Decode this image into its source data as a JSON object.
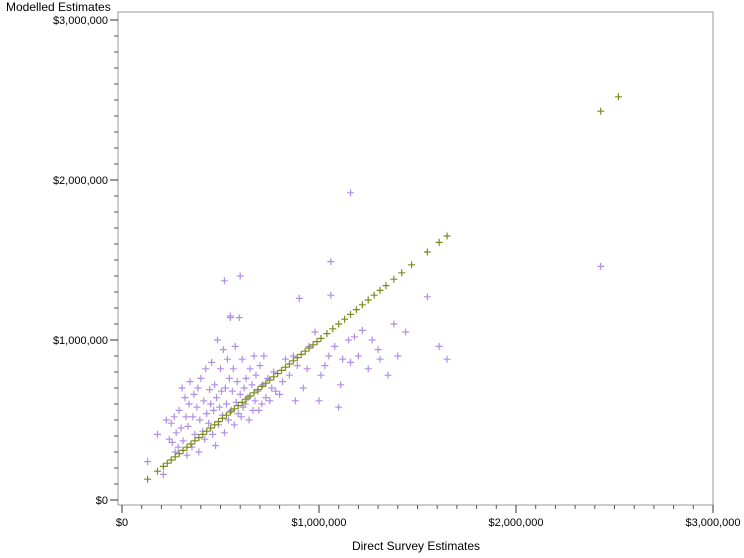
{
  "chart_data": {
    "type": "scatter",
    "ylabel": "Modelled Estimates",
    "xlabel": "Direct Survey Estimates",
    "xlim": [
      0,
      3000000
    ],
    "ylim": [
      0,
      3000000
    ],
    "x_ticks": [
      0,
      1000000,
      2000000,
      3000000
    ],
    "x_tick_labels": [
      "$0",
      "$1,000,000",
      "$2,000,000",
      "$3,000,000"
    ],
    "y_ticks": [
      0,
      1000000,
      2000000,
      3000000
    ],
    "y_tick_labels": [
      "$0",
      "$1,000,000",
      "$2,000,000",
      "$3,000,000"
    ],
    "grid": false,
    "legend": "none",
    "marker": "plus",
    "series": [
      {
        "color": "#b28fe6",
        "x": [
          130000,
          180000,
          210000,
          225000,
          240000,
          250000,
          255000,
          265000,
          270000,
          275000,
          285000,
          290000,
          300000,
          305000,
          310000,
          320000,
          325000,
          330000,
          335000,
          340000,
          345000,
          355000,
          360000,
          365000,
          370000,
          380000,
          385000,
          390000,
          395000,
          400000,
          410000,
          415000,
          420000,
          425000,
          430000,
          440000,
          445000,
          450000,
          455000,
          460000,
          465000,
          470000,
          475000,
          480000,
          485000,
          490000,
          495000,
          500000,
          505000,
          510000,
          515000,
          520000,
          525000,
          530000,
          535000,
          540000,
          545000,
          550000,
          555000,
          560000,
          565000,
          570000,
          575000,
          580000,
          585000,
          590000,
          595000,
          600000,
          605000,
          610000,
          615000,
          620000,
          625000,
          630000,
          640000,
          645000,
          650000,
          660000,
          665000,
          670000,
          675000,
          680000,
          690000,
          695000,
          700000,
          710000,
          715000,
          720000,
          730000,
          740000,
          750000,
          760000,
          770000,
          780000,
          800000,
          815000,
          830000,
          850000,
          870000,
          880000,
          890000,
          900000,
          920000,
          940000,
          950000,
          980000,
          1000000,
          1010000,
          1030000,
          1050000,
          1060000,
          1080000,
          1100000,
          1110000,
          1120000,
          1150000,
          1160000,
          1180000,
          1200000,
          1220000,
          1250000,
          1270000,
          1300000,
          1310000,
          1350000,
          1380000,
          1400000,
          1440000,
          1550000,
          1610000,
          1650000,
          2430000,
          1160000,
          1060000,
          520000,
          550000,
          600000
        ],
        "y": [
          240000,
          410000,
          160000,
          500000,
          380000,
          480000,
          360000,
          520000,
          300000,
          420000,
          330000,
          560000,
          450000,
          700000,
          370000,
          640000,
          520000,
          280000,
          460000,
          600000,
          740000,
          330000,
          520000,
          660000,
          410000,
          580000,
          700000,
          300000,
          500000,
          760000,
          430000,
          620000,
          380000,
          820000,
          540000,
          480000,
          690000,
          600000,
          860000,
          410000,
          560000,
          720000,
          340000,
          640000,
          1000000,
          470000,
          580000,
          820000,
          680000,
          530000,
          940000,
          420000,
          700000,
          600000,
          880000,
          500000,
          760000,
          1150000,
          560000,
          680000,
          820000,
          470000,
          960000,
          610000,
          740000,
          540000,
          1140000,
          660000,
          520000,
          880000,
          580000,
          700000,
          600000,
          760000,
          640000,
          500000,
          820000,
          720000,
          560000,
          900000,
          620000,
          780000,
          680000,
          560000,
          840000,
          600000,
          720000,
          900000,
          640000,
          760000,
          620000,
          700000,
          800000,
          680000,
          660000,
          740000,
          880000,
          780000,
          900000,
          620000,
          840000,
          1260000,
          700000,
          820000,
          960000,
          1050000,
          620000,
          780000,
          840000,
          900000,
          1490000,
          960000,
          580000,
          720000,
          880000,
          1000000,
          860000,
          1020000,
          900000,
          1060000,
          820000,
          1000000,
          940000,
          880000,
          780000,
          1100000,
          900000,
          1050000,
          1270000,
          960000,
          880000,
          1460000,
          1920000,
          1280000,
          1370000,
          1140000,
          1400000
        ],
        "name": ""
      },
      {
        "color": "#7a8c1e",
        "x": [
          130000,
          180000,
          210000,
          230000,
          250000,
          270000,
          290000,
          310000,
          330000,
          350000,
          370000,
          390000,
          410000,
          430000,
          450000,
          470000,
          490000,
          510000,
          530000,
          550000,
          570000,
          590000,
          610000,
          630000,
          650000,
          670000,
          690000,
          710000,
          730000,
          750000,
          770000,
          790000,
          810000,
          830000,
          850000,
          870000,
          890000,
          910000,
          930000,
          950000,
          970000,
          990000,
          1010000,
          1040000,
          1070000,
          1100000,
          1130000,
          1160000,
          1190000,
          1220000,
          1250000,
          1280000,
          1310000,
          1340000,
          1380000,
          1420000,
          1470000,
          1550000,
          1610000,
          1650000,
          2430000,
          2520000
        ],
        "y": [
          130000,
          180000,
          210000,
          230000,
          250000,
          270000,
          290000,
          310000,
          330000,
          350000,
          370000,
          390000,
          410000,
          430000,
          450000,
          470000,
          490000,
          510000,
          530000,
          550000,
          570000,
          590000,
          610000,
          630000,
          650000,
          670000,
          690000,
          710000,
          730000,
          750000,
          770000,
          790000,
          810000,
          830000,
          850000,
          870000,
          890000,
          910000,
          930000,
          950000,
          970000,
          990000,
          1010000,
          1040000,
          1070000,
          1100000,
          1130000,
          1160000,
          1190000,
          1220000,
          1250000,
          1280000,
          1310000,
          1340000,
          1380000,
          1420000,
          1470000,
          1550000,
          1610000,
          1650000,
          2430000,
          2520000
        ],
        "name": ""
      }
    ]
  }
}
